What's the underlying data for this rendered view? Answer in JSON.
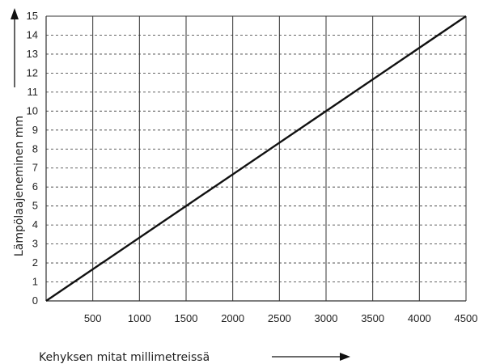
{
  "chart_data": {
    "type": "line",
    "xlabel": "Kehyksen mitat millimetreissä",
    "ylabel": "Lämpölaajeneminen mm",
    "xlim": [
      0,
      4500
    ],
    "ylim": [
      0,
      15
    ],
    "x_ticks": [
      "500",
      "1000",
      "1500",
      "2000",
      "2500",
      "3000",
      "3500",
      "4000",
      "4500"
    ],
    "y_ticks": [
      "0",
      "1",
      "2",
      "3",
      "4",
      "5",
      "6",
      "7",
      "8",
      "9",
      "10",
      "11",
      "12",
      "13",
      "14",
      "15"
    ],
    "grid": {
      "vertical": "solid",
      "horizontal": "dashed"
    },
    "series": [
      {
        "x": [
          0,
          4500
        ],
        "y": [
          0,
          15
        ],
        "color": "#111111"
      }
    ],
    "colors": {
      "line": "#111111",
      "grid": "#333333",
      "text": "#222222"
    }
  }
}
